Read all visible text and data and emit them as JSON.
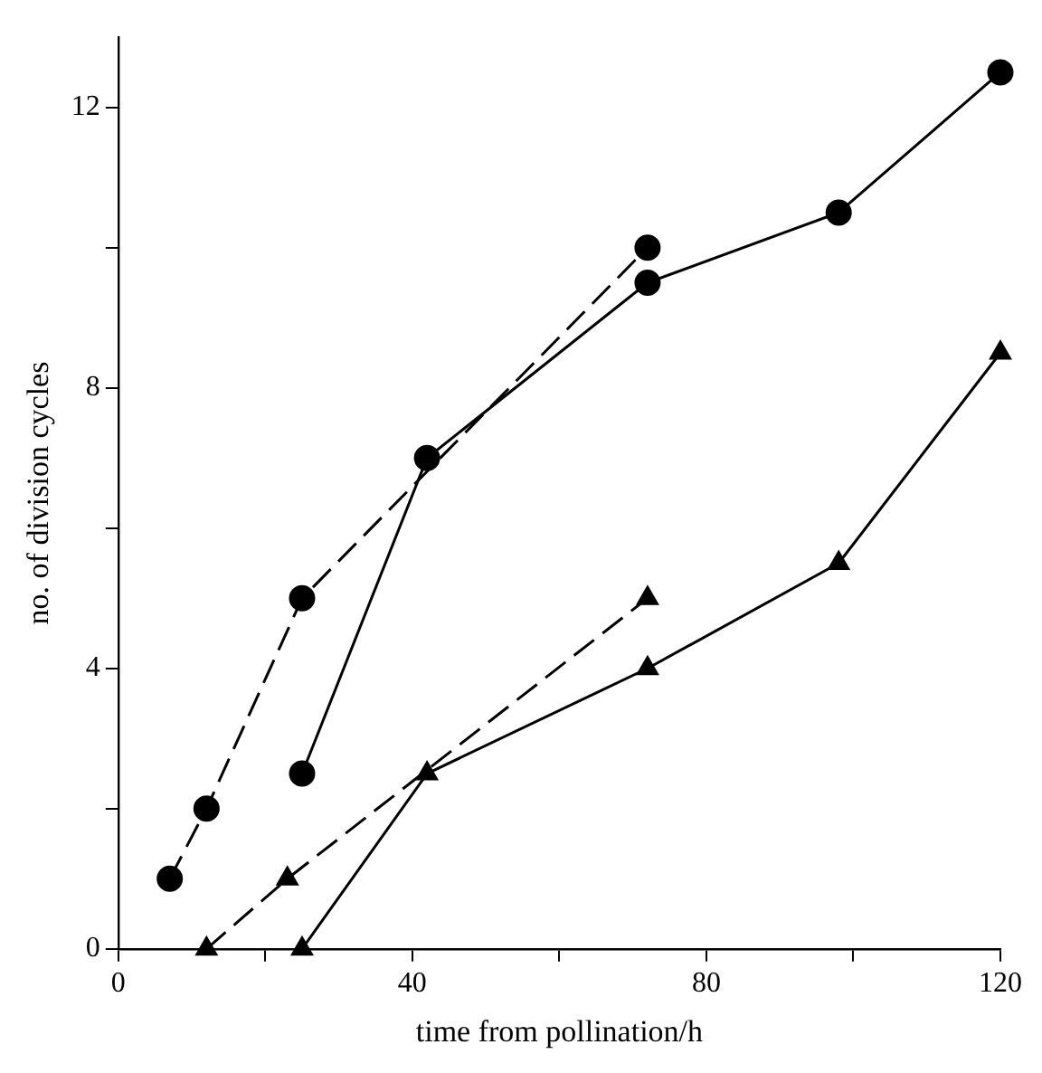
{
  "chart_data": {
    "type": "line",
    "xlabel": "time from pollination/h",
    "ylabel": "no. of division cycles",
    "xlim": [
      0,
      120
    ],
    "ylim": [
      0,
      13
    ],
    "xticks": [
      0,
      {
        "value": 20,
        "label": null
      },
      40,
      {
        "value": 60,
        "label": null
      },
      80,
      {
        "value": 100,
        "label": null
      },
      120
    ],
    "yticks": [
      0,
      {
        "value": 2,
        "label": null
      },
      4,
      {
        "value": 6,
        "label": null
      },
      8,
      {
        "value": 10,
        "label": null
      },
      12
    ],
    "grid": false,
    "legend": false,
    "series": [
      {
        "color": "#000000",
        "marker": "circle",
        "line_style": "dashed",
        "x": [
          7,
          12,
          25,
          72
        ],
        "values": [
          1,
          2,
          5,
          10
        ]
      },
      {
        "color": "#000000",
        "marker": "circle",
        "line_style": "solid",
        "x": [
          25,
          42,
          72,
          98,
          120
        ],
        "values": [
          2.5,
          7,
          9.5,
          10.5,
          12.5
        ]
      },
      {
        "color": "#000000",
        "marker": "triangle",
        "line_style": "dashed",
        "x": [
          12,
          23,
          72
        ],
        "values": [
          0,
          1,
          5
        ]
      },
      {
        "color": "#000000",
        "marker": "triangle",
        "line_style": "solid",
        "x": [
          25,
          42,
          72,
          98,
          120
        ],
        "values": [
          0,
          2.5,
          4,
          5.5,
          8.5
        ]
      }
    ]
  }
}
